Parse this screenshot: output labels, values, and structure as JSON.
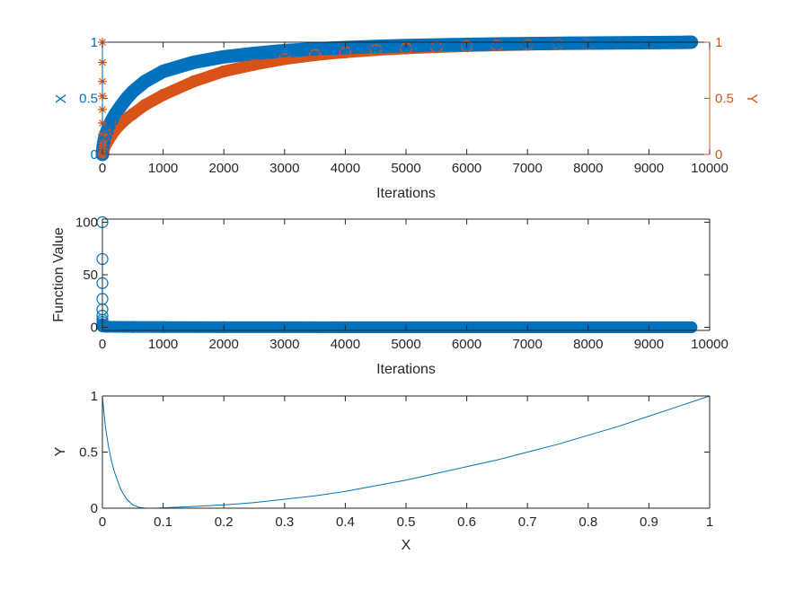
{
  "colors": {
    "blue": "#0072BD",
    "orange": "#D95319",
    "axis": "#262626"
  },
  "chart_data": [
    {
      "type": "scatter",
      "xlabel": "Iterations",
      "ylabel_left": "X",
      "ylabel_right": "Y",
      "xlim": [
        0,
        10000
      ],
      "ylim_left": [
        0,
        1
      ],
      "ylim_right": [
        0,
        1
      ],
      "xticks": [
        "0",
        "1000",
        "2000",
        "3000",
        "4000",
        "5000",
        "6000",
        "7000",
        "8000",
        "9000",
        "10000"
      ],
      "yticks_left": [
        "0",
        "0.5",
        "1"
      ],
      "yticks_right": [
        "0",
        "0.5",
        "1"
      ],
      "grid": false,
      "series": [
        {
          "axis": "left",
          "marker": "circle",
          "color": "#0072BD",
          "x": [
            0,
            10,
            20,
            40,
            70,
            100,
            150,
            200,
            300,
            400,
            500,
            700,
            1000,
            1500,
            2000,
            2500,
            3000,
            3500,
            4000,
            4500,
            5000,
            5500,
            6000,
            6500,
            7000,
            7500,
            8000,
            8500,
            9000,
            9500,
            9700
          ],
          "y": [
            0.0,
            0.06,
            0.1,
            0.15,
            0.2,
            0.25,
            0.3,
            0.35,
            0.43,
            0.5,
            0.56,
            0.65,
            0.74,
            0.82,
            0.87,
            0.9,
            0.925,
            0.94,
            0.952,
            0.962,
            0.97,
            0.975,
            0.98,
            0.984,
            0.987,
            0.99,
            0.992,
            0.994,
            0.996,
            0.998,
            1.0
          ]
        },
        {
          "axis": "right",
          "marker": "circle",
          "color": "#D95319",
          "x": [
            0,
            10,
            20,
            40,
            70,
            100,
            150,
            200,
            300,
            400,
            500,
            700,
            1000,
            1500,
            2000,
            2500,
            3000,
            3500,
            4000,
            4500,
            5000,
            5500,
            6000,
            6500,
            7000,
            7500,
            8000,
            8500,
            9000,
            9500,
            9700
          ],
          "y": [
            0.0,
            0.02,
            0.04,
            0.07,
            0.1,
            0.13,
            0.17,
            0.21,
            0.27,
            0.32,
            0.36,
            0.44,
            0.53,
            0.65,
            0.74,
            0.8,
            0.85,
            0.885,
            0.91,
            0.93,
            0.945,
            0.956,
            0.965,
            0.972,
            0.978,
            0.983,
            0.987,
            0.991,
            0.994,
            0.997,
            1.0
          ]
        },
        {
          "axis": "right",
          "marker": "asterisk",
          "color": "#D95319",
          "x": [
            0,
            0,
            0,
            0,
            0,
            0,
            0,
            0,
            0,
            0
          ],
          "y": [
            0.0,
            0.05,
            0.1,
            0.18,
            0.28,
            0.4,
            0.52,
            0.65,
            0.82,
            1.0
          ]
        }
      ]
    },
    {
      "type": "scatter",
      "xlabel": "Iterations",
      "ylabel": "Function Value",
      "xlim": [
        0,
        10000
      ],
      "ylim": [
        -3,
        103
      ],
      "xticks": [
        "0",
        "1000",
        "2000",
        "3000",
        "4000",
        "5000",
        "6000",
        "7000",
        "8000",
        "9000",
        "10000"
      ],
      "yticks": [
        "0",
        "50",
        "100"
      ],
      "grid": false,
      "series": [
        {
          "marker": "circle",
          "color": "#0072BD",
          "x": [
            0,
            0,
            0,
            0,
            0,
            0,
            0,
            0,
            0,
            0,
            0
          ],
          "y": [
            100,
            65,
            42,
            27,
            17,
            11,
            7,
            5,
            3,
            2,
            1
          ]
        },
        {
          "marker": "circle",
          "color": "#0072BD",
          "x": [
            0,
            10,
            20,
            40,
            70,
            100,
            200,
            500,
            1000,
            2000,
            3000,
            4000,
            5000,
            6000,
            7000,
            8000,
            9000,
            9700
          ],
          "y": [
            1.0,
            0.9,
            0.8,
            0.7,
            0.6,
            0.5,
            0.4,
            0.3,
            0.2,
            0.1,
            0.05,
            0.03,
            0.02,
            0.01,
            0.005,
            0.002,
            0.001,
            0.0
          ]
        }
      ]
    },
    {
      "type": "line",
      "xlabel": "X",
      "ylabel": "Y",
      "xlim": [
        0,
        1
      ],
      "ylim": [
        0,
        1
      ],
      "xticks": [
        "0",
        "0.1",
        "0.2",
        "0.3",
        "0.4",
        "0.5",
        "0.6",
        "0.7",
        "0.8",
        "0.9",
        "1"
      ],
      "yticks": [
        "0",
        "0.5",
        "1"
      ],
      "grid": false,
      "series": [
        {
          "color": "#0072BD",
          "x": [
            0.0,
            0.002,
            0.005,
            0.01,
            0.015,
            0.02,
            0.03,
            0.04,
            0.05,
            0.06,
            0.07,
            0.08,
            0.09,
            0.1,
            0.12,
            0.15,
            0.2,
            0.25,
            0.3,
            0.35,
            0.4,
            0.45,
            0.5,
            0.55,
            0.6,
            0.65,
            0.7,
            0.75,
            0.8,
            0.85,
            0.9,
            0.95,
            1.0
          ],
          "y": [
            1.0,
            0.88,
            0.72,
            0.55,
            0.42,
            0.32,
            0.17,
            0.08,
            0.03,
            0.008,
            0.001,
            0.0,
            0.001,
            0.003,
            0.008,
            0.015,
            0.03,
            0.05,
            0.08,
            0.11,
            0.15,
            0.2,
            0.25,
            0.31,
            0.37,
            0.43,
            0.5,
            0.57,
            0.65,
            0.73,
            0.82,
            0.91,
            1.0
          ]
        }
      ]
    }
  ]
}
